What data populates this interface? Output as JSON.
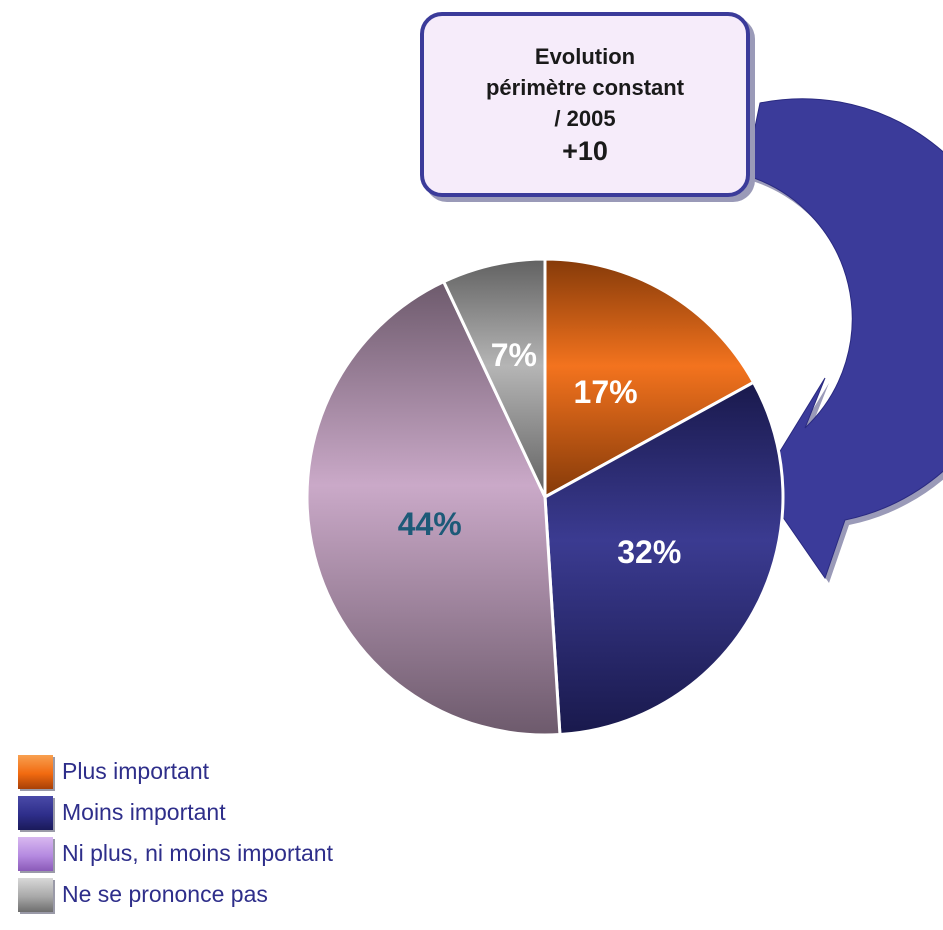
{
  "callout": {
    "lines": [
      "Evolution",
      "périmètre constant",
      "/ 2005"
    ],
    "value": "+10"
  },
  "colors": {
    "plus_important": "#f26a10",
    "moins_important": "#2e2e8a",
    "ni_plus_ni_moins": "#c7a4c4",
    "ne_se_prononce_pas": "#b0b0b0",
    "arrow": "#3b3b9a"
  },
  "chart_data": {
    "type": "pie",
    "series": [
      {
        "name": "Plus important",
        "value": 17,
        "label": "17%",
        "color": "#f26a10",
        "label_color": "#ffffff"
      },
      {
        "name": "Moins important",
        "value": 32,
        "label": "32%",
        "color": "#2e2e8a",
        "label_color": "#ffffff"
      },
      {
        "name": "Ni plus, ni moins important",
        "value": 44,
        "label": "44%",
        "color": "#c7a4c4",
        "label_color": "#1d5a78"
      },
      {
        "name": "Ne se prononce pas",
        "value": 7,
        "label": "7%",
        "color": "#b0b0b0",
        "label_color": "#ffffff"
      }
    ],
    "legend_position": "bottom-left"
  }
}
